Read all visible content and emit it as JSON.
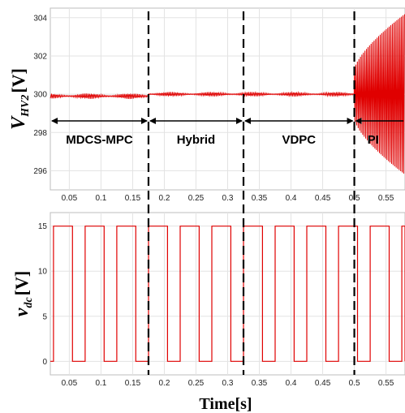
{
  "chart_data": [
    {
      "type": "line",
      "ylabel_main": "V",
      "ylabel_sub": "HV2",
      "ylabel_unit": "[V]",
      "xlim": [
        0.02,
        0.58
      ],
      "ylim": [
        295,
        304.5
      ],
      "xticks": [
        "0.05",
        "0.1",
        "0.15",
        "0.2",
        "0.25",
        "0.3",
        "0.35",
        "0.4",
        "0.45",
        "0.5",
        "0.55"
      ],
      "yticks": [
        "296",
        "298",
        "300",
        "302",
        "304"
      ],
      "grid": true,
      "series_color": "#e00000",
      "regions": [
        {
          "label": "MDCS-MPC",
          "start": 0.02,
          "end": 0.175
        },
        {
          "label": "Hybrid",
          "start": 0.175,
          "end": 0.325
        },
        {
          "label": "VDPC",
          "start": 0.325,
          "end": 0.5
        },
        {
          "label": "PI",
          "start": 0.5,
          "end": 0.58
        }
      ],
      "segments": [
        {
          "start": 0.02,
          "end": 0.175,
          "mean": 299.9,
          "ripple": 0.15
        },
        {
          "start": 0.175,
          "end": 0.325,
          "mean": 300.0,
          "ripple": 0.12
        },
        {
          "start": 0.325,
          "end": 0.5,
          "mean": 300.0,
          "ripple": 0.12
        },
        {
          "start": 0.5,
          "end": 0.58,
          "mean": 300.0,
          "ripple_from": 1.3,
          "ripple_to": 4.2
        }
      ]
    },
    {
      "type": "line",
      "ylabel_main": "v",
      "ylabel_sub": "dc",
      "ylabel_unit": "[V]",
      "xlabel": "Time[s]",
      "xlim": [
        0.02,
        0.58
      ],
      "ylim": [
        -1.5,
        16.5
      ],
      "xticks": [
        "0.05",
        "0.1",
        "0.15",
        "0.2",
        "0.25",
        "0.3",
        "0.35",
        "0.4",
        "0.45",
        "0.5",
        "0.55"
      ],
      "yticks": [
        "0",
        "5",
        "10",
        "15"
      ],
      "grid": true,
      "series_color": "#e00000",
      "square_wave": {
        "low": 0,
        "high": 15,
        "period": 0.05,
        "first_rise": 0.025,
        "duty": 0.6
      }
    }
  ],
  "dividers_time": [
    0.175,
    0.325,
    0.5
  ]
}
